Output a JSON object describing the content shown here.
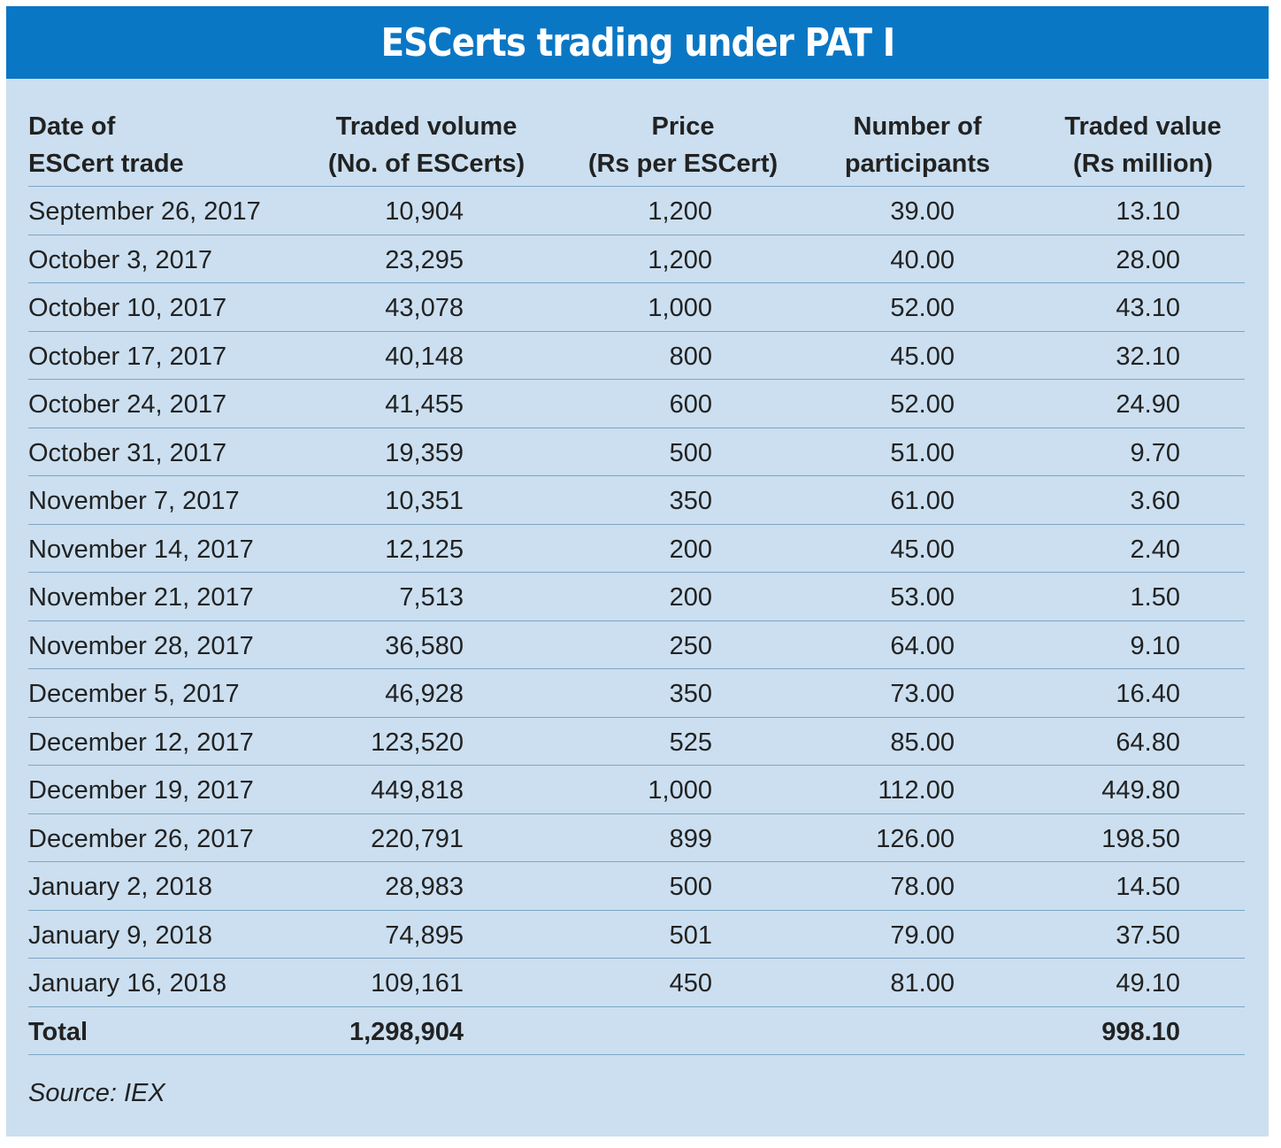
{
  "title": "ESCerts trading under PAT I",
  "headers": {
    "date": [
      "Date of",
      "ESCert trade"
    ],
    "volume": [
      "Traded volume",
      "(No. of ESCerts)"
    ],
    "price": [
      "Price",
      "(Rs per ESCert)"
    ],
    "participants": [
      "Number of",
      "participants"
    ],
    "value": [
      "Traded value",
      "(Rs million)"
    ]
  },
  "rows": [
    {
      "date": "September 26, 2017",
      "volume": "10,904",
      "price": "1,200",
      "participants": "39.00",
      "value": "13.10"
    },
    {
      "date": "October 3, 2017",
      "volume": "23,295",
      "price": "1,200",
      "participants": "40.00",
      "value": "28.00"
    },
    {
      "date": "October 10, 2017",
      "volume": "43,078",
      "price": "1,000",
      "participants": "52.00",
      "value": "43.10"
    },
    {
      "date": "October 17, 2017",
      "volume": "40,148",
      "price": "800",
      "participants": "45.00",
      "value": "32.10"
    },
    {
      "date": "October 24, 2017",
      "volume": "41,455",
      "price": "600",
      "participants": "52.00",
      "value": "24.90"
    },
    {
      "date": "October 31, 2017",
      "volume": "19,359",
      "price": "500",
      "participants": "51.00",
      "value": "9.70"
    },
    {
      "date": "November 7, 2017",
      "volume": "10,351",
      "price": "350",
      "participants": "61.00",
      "value": "3.60"
    },
    {
      "date": "November 14, 2017",
      "volume": "12,125",
      "price": "200",
      "participants": "45.00",
      "value": "2.40"
    },
    {
      "date": "November 21, 2017",
      "volume": "7,513",
      "price": "200",
      "participants": "53.00",
      "value": "1.50"
    },
    {
      "date": "November 28, 2017",
      "volume": "36,580",
      "price": "250",
      "participants": "64.00",
      "value": "9.10"
    },
    {
      "date": "December 5, 2017",
      "volume": "46,928",
      "price": "350",
      "participants": "73.00",
      "value": "16.40"
    },
    {
      "date": "December 12, 2017",
      "volume": "123,520",
      "price": "525",
      "participants": "85.00",
      "value": "64.80"
    },
    {
      "date": "December 19, 2017",
      "volume": "449,818",
      "price": "1,000",
      "participants": "112.00",
      "value": "449.80"
    },
    {
      "date": "December 26, 2017",
      "volume": "220,791",
      "price": "899",
      "participants": "126.00",
      "value": "198.50"
    },
    {
      "date": "January 2, 2018",
      "volume": "28,983",
      "price": "500",
      "participants": "78.00",
      "value": "14.50"
    },
    {
      "date": "January 9, 2018",
      "volume": "74,895",
      "price": "501",
      "participants": "79.00",
      "value": "37.50"
    },
    {
      "date": "January 16, 2018",
      "volume": "109,161",
      "price": "450",
      "participants": "81.00",
      "value": "49.10"
    }
  ],
  "total": {
    "label": "Total",
    "volume": "1,298,904",
    "value": "998.10"
  },
  "source": "Source: IEX",
  "colors": {
    "banner": "#0a77c5",
    "panel": "#cbdff0",
    "rule": "#7ea6c6"
  }
}
